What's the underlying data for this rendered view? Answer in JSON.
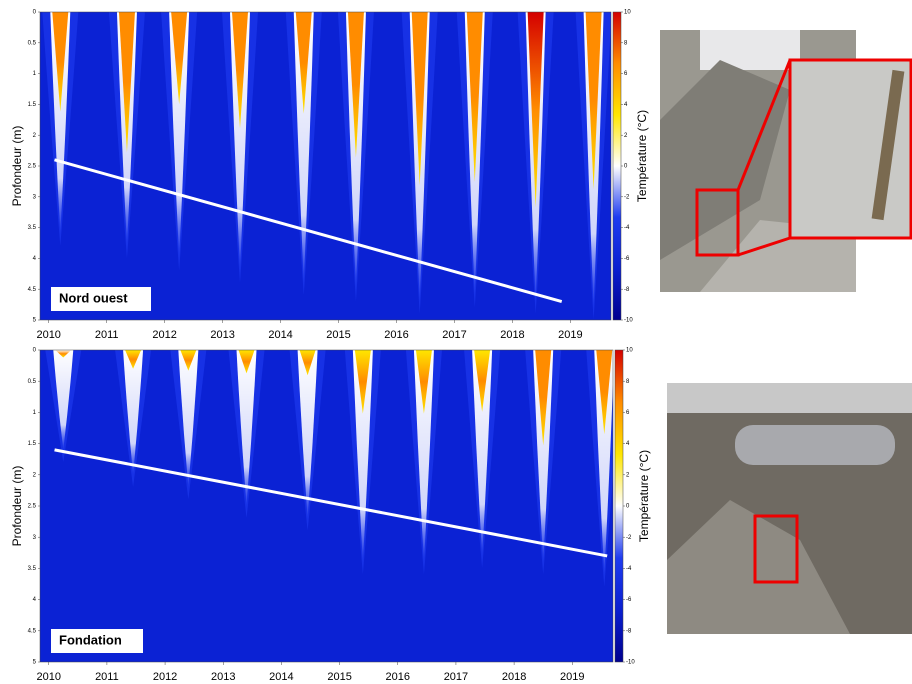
{
  "chart_data": [
    {
      "type": "heatmap",
      "label": "Nord ouest",
      "ylabel": "Profondeur (m)",
      "zlabel": "Température (°C)",
      "x": [
        2010.2,
        2011.35,
        2012.25,
        2013.3,
        2014.4,
        2015.3,
        2016.4,
        2017.35,
        2018.4,
        2019.4
      ],
      "values": [
        3.6,
        3.8,
        4.0,
        4.2,
        4.4,
        4.5,
        4.7,
        4.6,
        4.7,
        4.8
      ],
      "surface_max": [
        6,
        8,
        5,
        6,
        5,
        7,
        8,
        8,
        9,
        8
      ],
      "trend": {
        "x": [
          2010.1,
          2018.85
        ],
        "values": [
          2.4,
          4.7
        ],
        "color": "#ffffff"
      },
      "xlim": [
        2009.85,
        2019.7
      ],
      "xticks": [
        2010,
        2011,
        2012,
        2013,
        2014,
        2015,
        2016,
        2017,
        2018,
        2019
      ],
      "ylim": [
        0,
        5
      ],
      "yticks": [
        0,
        0.5,
        1,
        1.5,
        2,
        2.5,
        3,
        3.5,
        4,
        4.5,
        5
      ],
      "y_inverted": true,
      "zlim": [
        -10,
        10
      ],
      "zticks": [
        -10,
        -8,
        -6,
        -4,
        -2,
        0,
        2,
        4,
        6,
        8,
        10
      ],
      "colormap": [
        "#00008f",
        "#0a1fd0",
        "#1f3cf0",
        "#ffffff",
        "#ffe600",
        "#ff8c00",
        "#d40000"
      ],
      "background": "#0b22d4"
    },
    {
      "type": "heatmap",
      "label": "Fondation",
      "ylabel": "Profondeur (m)",
      "zlabel": "Température (°C)",
      "x": [
        2010.25,
        2011.45,
        2012.4,
        2013.4,
        2014.45,
        2015.4,
        2016.45,
        2017.45,
        2018.5,
        2019.55
      ],
      "values": [
        1.6,
        2.0,
        2.2,
        2.5,
        2.7,
        3.4,
        3.4,
        3.3,
        3.4,
        3.6
      ],
      "surface_max": [
        1,
        2,
        2,
        2,
        2,
        4,
        4,
        4,
        6,
        5
      ],
      "trend": {
        "x": [
          2010.1,
          2019.6
        ],
        "values": [
          1.6,
          3.3
        ],
        "color": "#ffffff"
      },
      "xlim": [
        2009.85,
        2019.7
      ],
      "xticks": [
        2010,
        2011,
        2012,
        2013,
        2014,
        2015,
        2016,
        2017,
        2018,
        2019
      ],
      "ylim": [
        0,
        5
      ],
      "yticks": [
        0,
        0.5,
        1,
        1.5,
        2,
        2.5,
        3,
        3.5,
        4,
        4.5,
        5
      ],
      "y_inverted": true,
      "zlim": [
        -10,
        10
      ],
      "zticks": [
        -10,
        -8,
        -6,
        -4,
        -2,
        0,
        2,
        4,
        6,
        8,
        10
      ],
      "colormap": [
        "#00008f",
        "#0a1fd0",
        "#1f3cf0",
        "#ffffff",
        "#ffe600",
        "#ff8c00",
        "#d40000"
      ],
      "background": "#0b22d4"
    }
  ]
}
